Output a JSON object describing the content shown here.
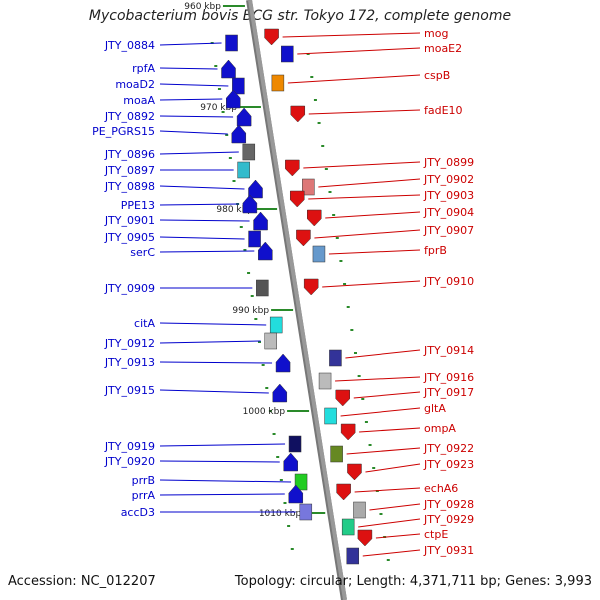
{
  "title": "Mycobacterium bovis BCG str. Tokyo 172, complete genome",
  "accession": "Accession: NC_012207",
  "summary": "Topology: circular; Length: 4,371,711 bp; Genes: 3,993",
  "colors": {
    "backbone": "#999999",
    "left_label": "#0000cc",
    "right_label": "#cc0000",
    "tick": "#2a8a2a"
  },
  "ruler": [
    "960 kbp",
    "970 kbp",
    "980 kbp",
    "990 kbp",
    "1000 kbp",
    "1010 kbp"
  ],
  "left_genes": [
    {
      "name": "JTY_0884",
      "fill": "#1010cc",
      "shape": "box"
    },
    {
      "name": "rpfA",
      "fill": "#1010cc",
      "shape": "arrow"
    },
    {
      "name": "moaD2",
      "fill": "#1010cc",
      "shape": "box"
    },
    {
      "name": "moaA",
      "fill": "#1010cc",
      "shape": "arrow"
    },
    {
      "name": "JTY_0892",
      "fill": "#1010cc",
      "shape": "arrow"
    },
    {
      "name": "PE_PGRS15",
      "fill": "#1010cc",
      "shape": "arrow"
    },
    {
      "name": "JTY_0896",
      "fill": "#666666",
      "shape": "box"
    },
    {
      "name": "JTY_0897",
      "fill": "#33bbcc",
      "shape": "box"
    },
    {
      "name": "JTY_0898",
      "fill": "#1010cc",
      "shape": "arrow"
    },
    {
      "name": "PPE13",
      "fill": "#1010cc",
      "shape": "arrow"
    },
    {
      "name": "JTY_0901",
      "fill": "#1010cc",
      "shape": "arrow"
    },
    {
      "name": "JTY_0905",
      "fill": "#1010cc",
      "shape": "box"
    },
    {
      "name": "serC",
      "fill": "#1010cc",
      "shape": "arrow"
    },
    {
      "name": "JTY_0909",
      "fill": "#555555",
      "shape": "box"
    },
    {
      "name": "citA",
      "fill": "#22dddd",
      "shape": "box"
    },
    {
      "name": "JTY_0912",
      "fill": "#bbbbbb",
      "shape": "box"
    },
    {
      "name": "JTY_0913",
      "fill": "#1010cc",
      "shape": "arrow"
    },
    {
      "name": "JTY_0915",
      "fill": "#1010cc",
      "shape": "arrow"
    },
    {
      "name": "JTY_0919",
      "fill": "#101060",
      "shape": "box"
    },
    {
      "name": "JTY_0920",
      "fill": "#1010cc",
      "shape": "arrow"
    },
    {
      "name": "prrB",
      "fill": "#22cc22",
      "shape": "box"
    },
    {
      "name": "prrA",
      "fill": "#1010cc",
      "shape": "arrow"
    },
    {
      "name": "accD3",
      "fill": "#7777dd",
      "shape": "box"
    }
  ],
  "right_genes": [
    {
      "name": "mog",
      "fill": "#dd1111",
      "shape": "arrow"
    },
    {
      "name": "moaE2",
      "fill": "#1010cc",
      "shape": "box"
    },
    {
      "name": "cspB",
      "fill": "#ee8800",
      "shape": "box"
    },
    {
      "name": "fadE10",
      "fill": "#dd1111",
      "shape": "arrow"
    },
    {
      "name": "JTY_0899",
      "fill": "#dd1111",
      "shape": "arrow"
    },
    {
      "name": "JTY_0902",
      "fill": "#dd7777",
      "shape": "box"
    },
    {
      "name": "JTY_0903",
      "fill": "#dd1111",
      "shape": "arrow"
    },
    {
      "name": "JTY_0904",
      "fill": "#dd1111",
      "shape": "arrow"
    },
    {
      "name": "JTY_0907",
      "fill": "#dd1111",
      "shape": "arrow"
    },
    {
      "name": "fprB",
      "fill": "#6699cc",
      "shape": "box"
    },
    {
      "name": "JTY_0910",
      "fill": "#dd1111",
      "shape": "arrow"
    },
    {
      "name": "JTY_0914",
      "fill": "#333399",
      "shape": "box"
    },
    {
      "name": "JTY_0916",
      "fill": "#bbbbbb",
      "shape": "box"
    },
    {
      "name": "JTY_0917",
      "fill": "#dd1111",
      "shape": "arrow"
    },
    {
      "name": "gltA",
      "fill": "#22dddd",
      "shape": "box"
    },
    {
      "name": "ompA",
      "fill": "#dd1111",
      "shape": "arrow"
    },
    {
      "name": "JTY_0922",
      "fill": "#668822",
      "shape": "box"
    },
    {
      "name": "JTY_0923",
      "fill": "#dd1111",
      "shape": "arrow"
    },
    {
      "name": "echA6",
      "fill": "#dd1111",
      "shape": "arrow"
    },
    {
      "name": "JTY_0928",
      "fill": "#aaaaaa",
      "shape": "box"
    },
    {
      "name": "JTY_0929",
      "fill": "#22cc88",
      "shape": "box"
    },
    {
      "name": "ctpE",
      "fill": "#dd1111",
      "shape": "arrow"
    },
    {
      "name": "JTY_0931",
      "fill": "#333399",
      "shape": "box"
    }
  ]
}
